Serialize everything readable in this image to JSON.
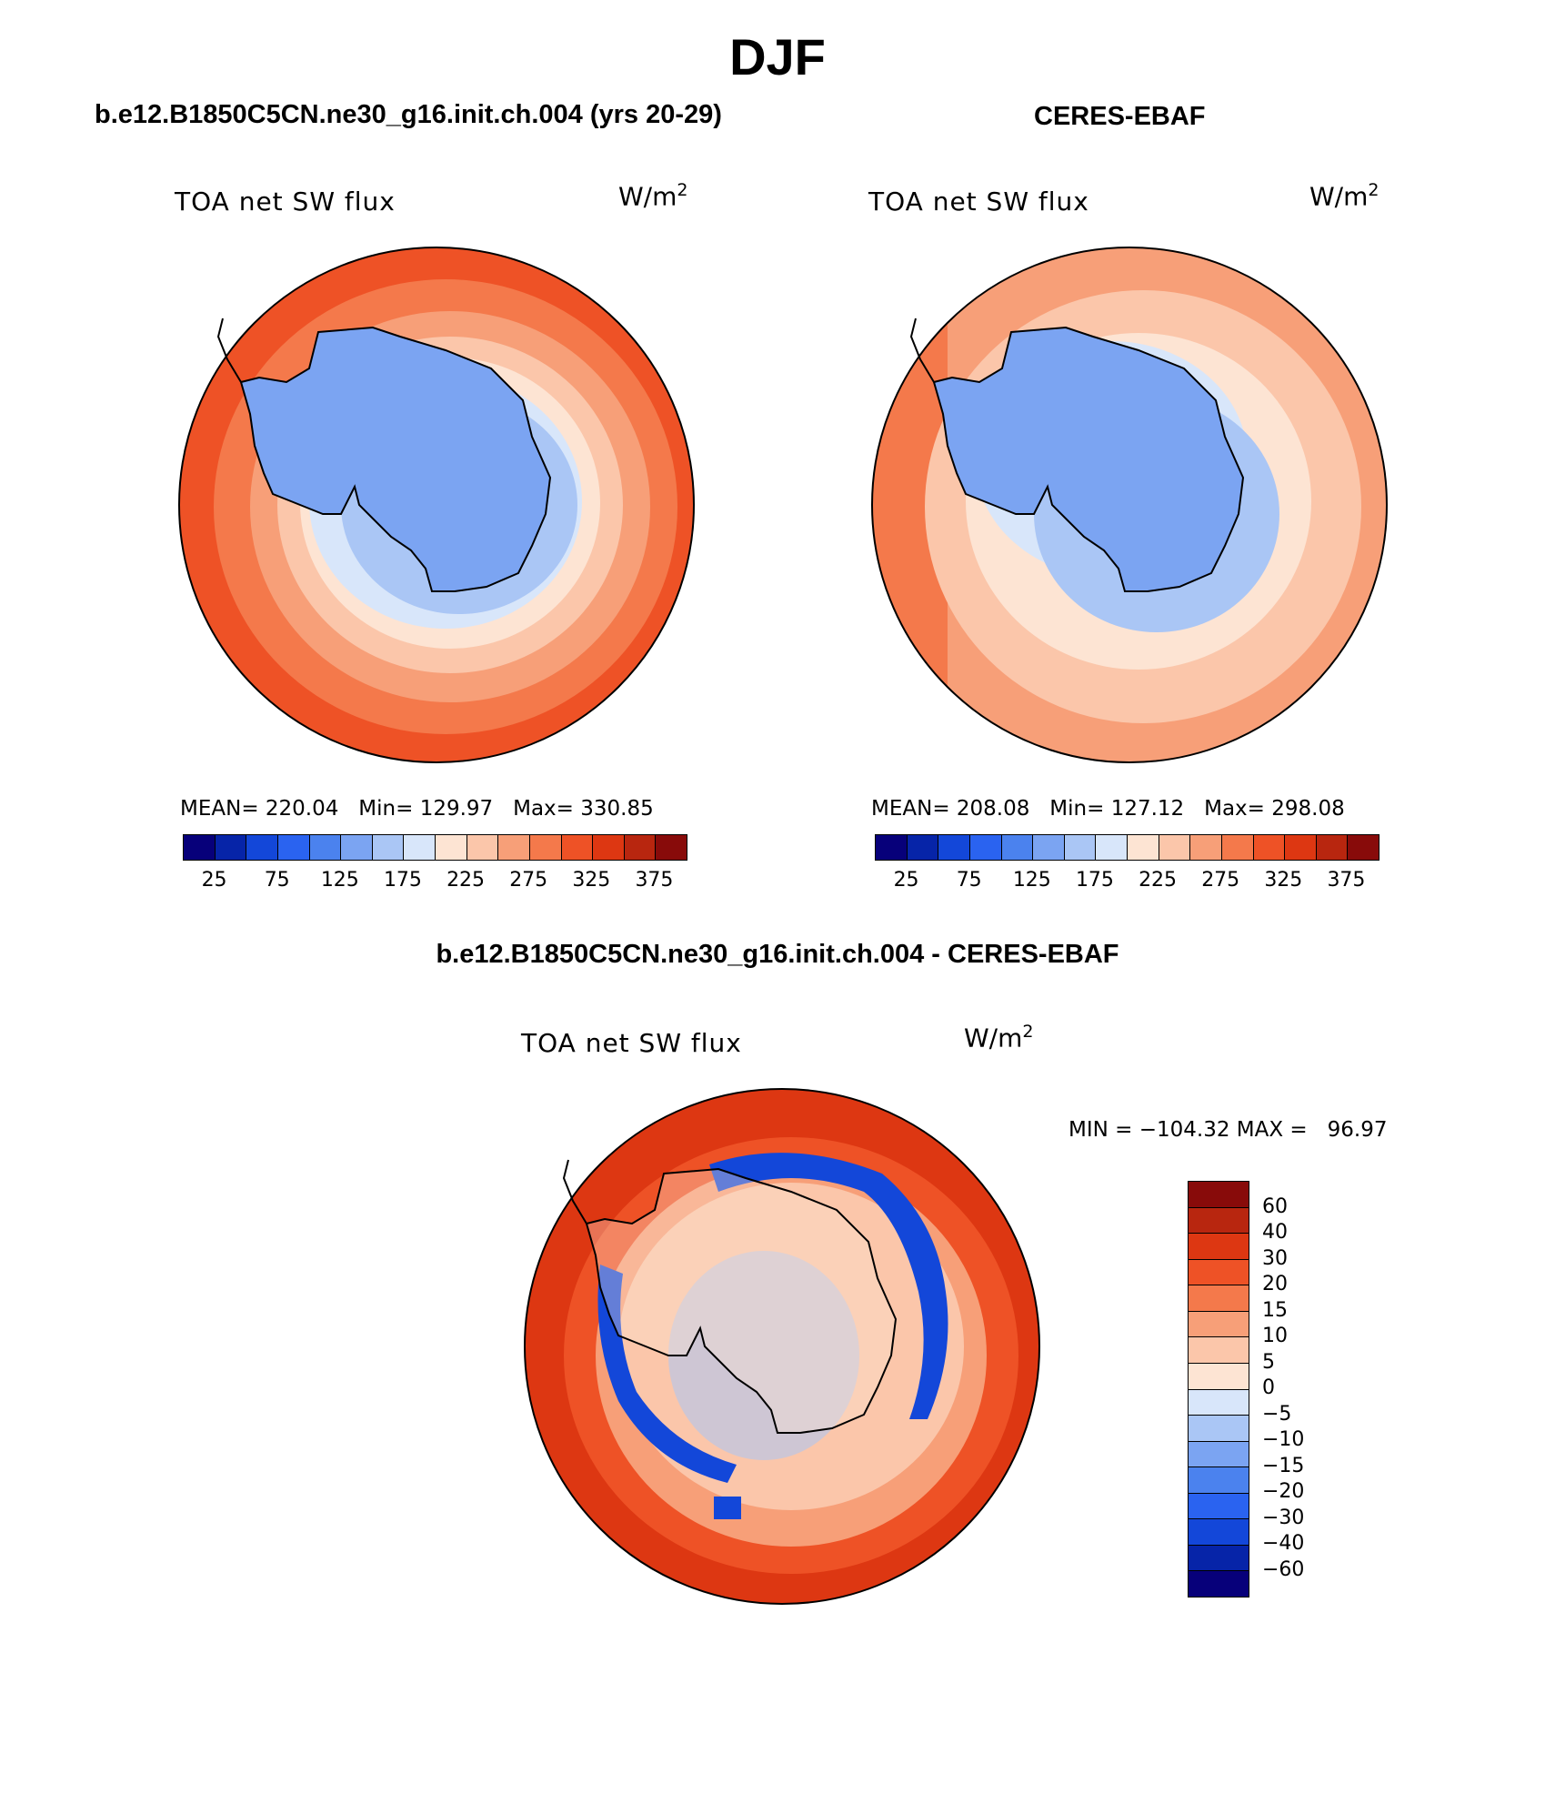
{
  "figure": {
    "title": "DJF"
  },
  "colors": {
    "abs_scale": [
      "#07007a",
      "#0624a8",
      "#1347d9",
      "#2a63f0",
      "#4b82ee",
      "#7ba4f2",
      "#aac6f5",
      "#d8e6fa",
      "#fde4d3",
      "#fbc6aa",
      "#f79f78",
      "#f4794b",
      "#ee5226",
      "#dd3712",
      "#b8260f",
      "#880b0a"
    ],
    "diff_scale": [
      "#880b0a",
      "#b8260f",
      "#dd3712",
      "#ee5226",
      "#f4794b",
      "#f79f78",
      "#fbc6aa",
      "#fde4d3",
      "#d8e6fa",
      "#aac6f5",
      "#7ba4f2",
      "#4b82ee",
      "#2a63f0",
      "#1347d9",
      "#0624a8",
      "#07007a"
    ],
    "coast": "#000000",
    "panel_border": "#000000"
  },
  "panels": [
    {
      "title": "b.e12.B1850C5CN.ne30_g16.init.ch.004 (yrs 20-29)",
      "variable": "TOA net SW flux",
      "units": "W/m",
      "units_sup": "2",
      "stats": "MEAN= 220.04   Min= 129.97   Max= 330.85",
      "ticks": [
        "25",
        "75",
        "125",
        "175",
        "225",
        "275",
        "325",
        "375"
      ]
    },
    {
      "title": "CERES-EBAF",
      "variable": "TOA net SW flux",
      "units": "W/m",
      "units_sup": "2",
      "stats": "MEAN= 208.08   Min= 127.12   Max= 298.08",
      "ticks": [
        "25",
        "75",
        "125",
        "175",
        "225",
        "275",
        "325",
        "375"
      ]
    }
  ],
  "diff": {
    "title": "b.e12.B1850C5CN.ne30_g16.init.ch.004 - CERES-EBAF",
    "variable": "TOA net SW flux",
    "units": "W/m",
    "units_sup": "2",
    "minmax": "MIN = −104.32 MAX =   96.97",
    "labels": [
      "60",
      "40",
      "30",
      "20",
      "15",
      "10",
      "5",
      "0",
      "−5",
      "−10",
      "−15",
      "−20",
      "−30",
      "−40",
      "−60"
    ]
  },
  "chart_data": {
    "type": "heatmap",
    "projection": "south polar stereographic",
    "season": "DJF",
    "maps": [
      {
        "name": "b.e12.B1850C5CN.ne30_g16.init.ch.004 (yrs 20-29)",
        "variable": "TOA net SW flux",
        "units": "W/m2",
        "mean": 220.04,
        "min": 129.97,
        "max": 330.85,
        "contour_levels": [
          0,
          25,
          50,
          75,
          100,
          125,
          150,
          175,
          200,
          225,
          250,
          275,
          300,
          325,
          350,
          375,
          400
        ]
      },
      {
        "name": "CERES-EBAF",
        "variable": "TOA net SW flux",
        "units": "W/m2",
        "mean": 208.08,
        "min": 127.12,
        "max": 298.08,
        "contour_levels": [
          0,
          25,
          50,
          75,
          100,
          125,
          150,
          175,
          200,
          225,
          250,
          275,
          300,
          325,
          350,
          375,
          400
        ]
      },
      {
        "name": "b.e12.B1850C5CN.ne30_g16.init.ch.004 - CERES-EBAF",
        "variable": "TOA net SW flux",
        "units": "W/m2",
        "min": -104.32,
        "max": 96.97,
        "contour_levels": [
          -60,
          -40,
          -30,
          -20,
          -15,
          -10,
          -5,
          0,
          5,
          10,
          15,
          20,
          30,
          40,
          60
        ]
      }
    ]
  }
}
